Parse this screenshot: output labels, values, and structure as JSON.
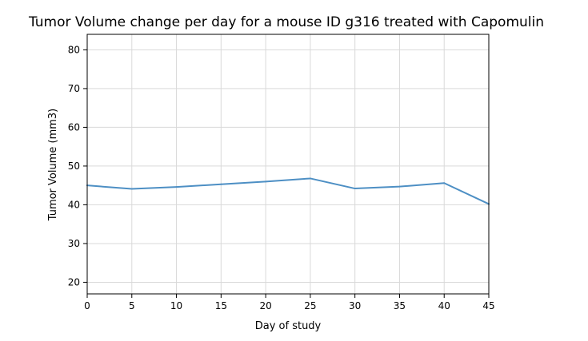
{
  "chart_data": {
    "type": "line",
    "title": "Tumor Volume change per day for a mouse ID g316 treated with Capomulin",
    "xlabel": "Day of study",
    "ylabel": "Tumor Volume (mm3)",
    "x": [
      0,
      5,
      10,
      15,
      20,
      25,
      30,
      35,
      40,
      45
    ],
    "series": [
      {
        "values": [
          45.0,
          44.1,
          44.6,
          45.3,
          46.0,
          46.8,
          44.2,
          44.7,
          45.6,
          40.2
        ],
        "color": "#4d8fc4"
      }
    ],
    "xlim": [
      0,
      45
    ],
    "ylim": [
      17,
      84
    ],
    "xticks": [
      0,
      5,
      10,
      15,
      20,
      25,
      30,
      35,
      40,
      45
    ],
    "yticks": [
      20,
      30,
      40,
      50,
      60,
      70,
      80
    ],
    "grid": true,
    "grid_color": "#d9d9d9",
    "axis_color": "#000000"
  }
}
